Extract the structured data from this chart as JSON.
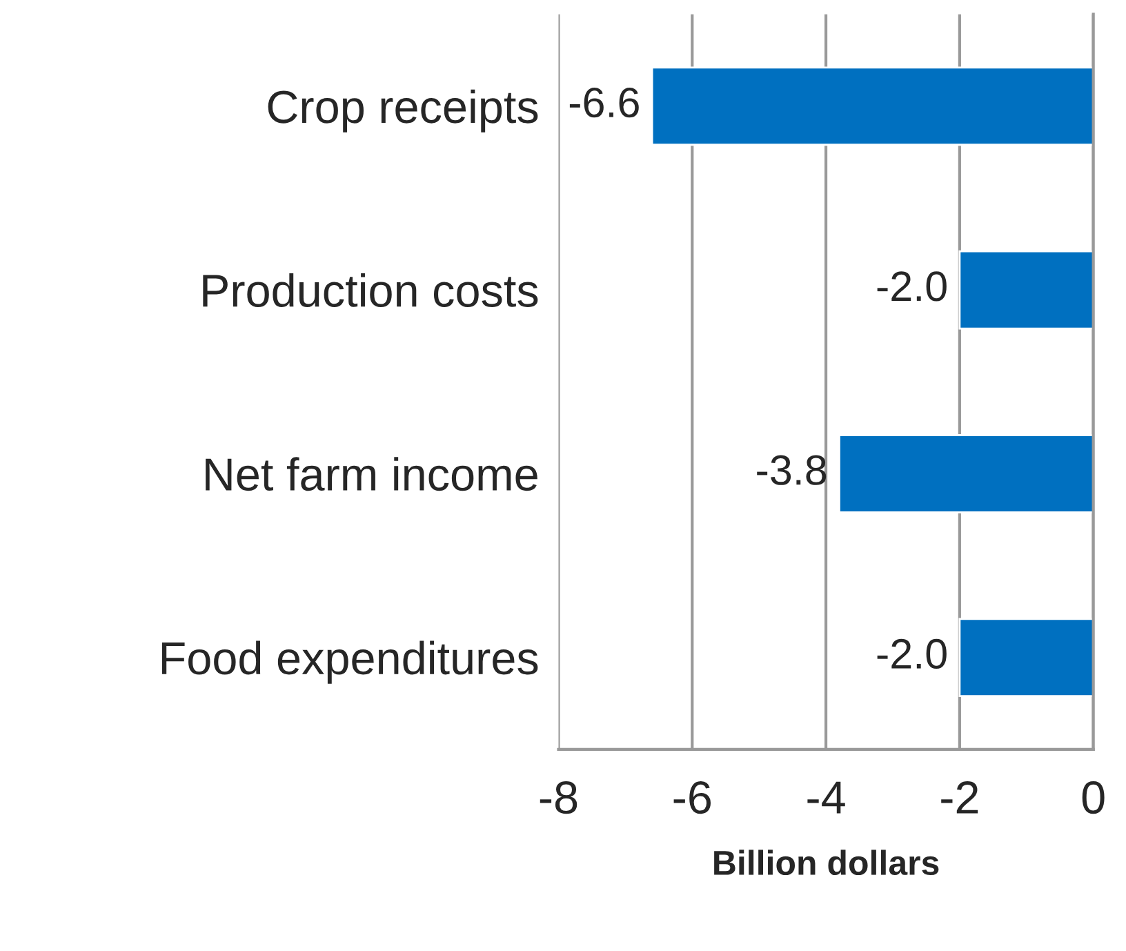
{
  "chart_data": {
    "type": "bar",
    "orientation": "horizontal",
    "xlabel": "Billion dollars",
    "categories": [
      "Crop receipts",
      "Production costs",
      "Net farm income",
      "Food expenditures"
    ],
    "values": [
      -6.6,
      -2.0,
      -3.8,
      -2.0
    ],
    "color": "#0070c0",
    "value_labels": [
      "-6.6",
      "-2.0",
      "-3.8",
      "-2.0"
    ],
    "xlim": [
      -8,
      0
    ],
    "xticks": [
      -8,
      -6,
      -4,
      -2,
      0
    ],
    "grid": "x"
  }
}
